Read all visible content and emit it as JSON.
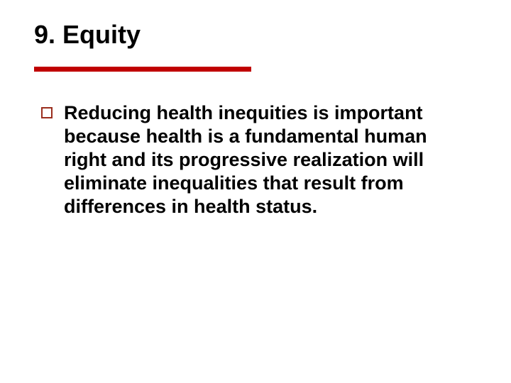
{
  "slide": {
    "title": "9. Equity",
    "divider_color": "#c00000",
    "bullet": {
      "box_border_color": "#9a2e1e",
      "text": "Reducing health inequities is important because health is a fundamental human right and its progressive realization will eliminate inequalities that result from differences in health status."
    },
    "background_color": "#ffffff",
    "title_fontsize": 36,
    "body_fontsize": 27,
    "font_family": "Verdana"
  }
}
